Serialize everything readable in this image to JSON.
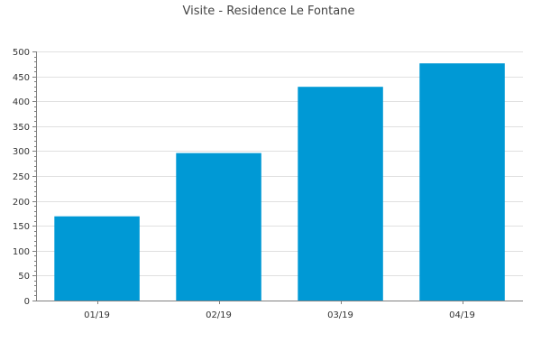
{
  "chart_data": {
    "type": "bar",
    "title": "Visite - Residence Le Fontane",
    "categories": [
      "01/19",
      "02/19",
      "03/19",
      "04/19"
    ],
    "values": [
      169,
      296,
      429,
      476
    ],
    "ylim": [
      0,
      500
    ],
    "yticks": [
      0,
      50,
      100,
      150,
      200,
      250,
      300,
      350,
      400,
      450,
      500
    ],
    "grid": true,
    "legend": "none",
    "bar_color": "#0099d5",
    "grid_color": "#e0e0e0",
    "axis_color": "#808080"
  }
}
